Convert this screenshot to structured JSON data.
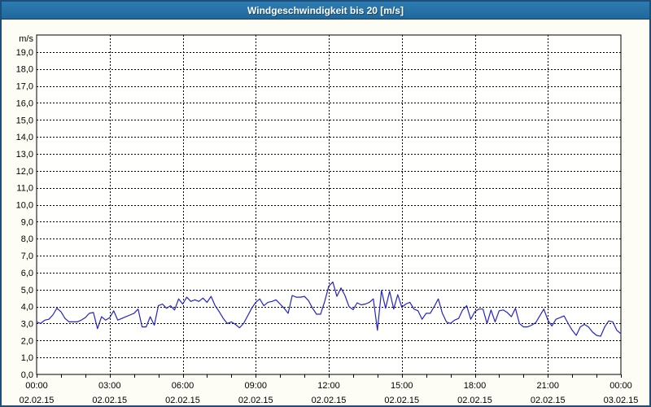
{
  "window": {
    "title": "Windgeschwindigkeit bis 20 [m/s]"
  },
  "chart_data": {
    "type": "line",
    "title": "Windgeschwindigkeit bis 20 [m/s]",
    "grid": {
      "dashed": true,
      "color": "#000000",
      "horizontal_step": 1,
      "vertical_step_hours": 3
    },
    "colors": {
      "line": "#2323c8",
      "axis": "#000000",
      "plot_background": "#fffffd",
      "outer_background": "#fdfdf6",
      "titlebar": "#2573a7",
      "frame_border": "#1b4e79"
    },
    "y_axis": {
      "unit_label": "m/s",
      "min": 0,
      "max": 20,
      "tick_step": 1,
      "tick_labels": [
        "0,0",
        "1,0",
        "2,0",
        "3,0",
        "4,0",
        "5,0",
        "6,0",
        "7,0",
        "8,0",
        "9,0",
        "10,0",
        "11,0",
        "12,0",
        "13,0",
        "14,0",
        "15,0",
        "16,0",
        "17,0",
        "18,0",
        "19,0"
      ]
    },
    "x_axis": {
      "range_hours": [
        0,
        24
      ],
      "minor_tick_every_hours": 1,
      "ticks": [
        {
          "hour": 0,
          "time": "00:00",
          "date": "02.02.15"
        },
        {
          "hour": 3,
          "time": "03:00",
          "date": "02.02.15"
        },
        {
          "hour": 6,
          "time": "06:00",
          "date": "02.02.15"
        },
        {
          "hour": 9,
          "time": "09:00",
          "date": "02.02.15"
        },
        {
          "hour": 12,
          "time": "12:00",
          "date": "02.02.15"
        },
        {
          "hour": 15,
          "time": "15:00",
          "date": "02.02.15"
        },
        {
          "hour": 18,
          "time": "18:00",
          "date": "02.02.15"
        },
        {
          "hour": 21,
          "time": "21:00",
          "date": "02.02.15"
        },
        {
          "hour": 24,
          "time": "00:00",
          "date": "03.02.15"
        }
      ]
    },
    "series": [
      {
        "name": "Windgeschwindigkeit",
        "interval_minutes": 10,
        "start_hour": 0,
        "values": [
          3.1,
          3.0,
          3.2,
          3.25,
          3.5,
          3.9,
          3.7,
          3.3,
          3.1,
          3.1,
          3.1,
          3.2,
          3.35,
          3.6,
          3.65,
          2.7,
          3.4,
          3.2,
          3.35,
          3.75,
          3.2,
          3.3,
          3.4,
          3.5,
          3.6,
          3.85,
          2.8,
          2.8,
          3.4,
          2.9,
          4.05,
          4.15,
          3.9,
          4.05,
          3.8,
          4.45,
          4.15,
          4.55,
          4.3,
          4.4,
          4.3,
          4.5,
          4.25,
          4.6,
          4.05,
          3.7,
          3.3,
          3.0,
          3.1,
          2.95,
          2.75,
          3.0,
          3.45,
          3.9,
          4.25,
          4.45,
          4.05,
          4.25,
          4.3,
          4.4,
          4.15,
          3.9,
          3.6,
          4.65,
          4.55,
          4.55,
          4.6,
          4.35,
          3.9,
          3.55,
          3.55,
          4.3,
          5.2,
          5.45,
          4.6,
          5.1,
          4.65,
          4.0,
          3.82,
          4.22,
          4.1,
          4.15,
          4.25,
          4.45,
          2.6,
          4.95,
          3.9,
          4.9,
          3.85,
          4.7,
          3.95,
          4.15,
          4.25,
          3.85,
          3.75,
          3.25,
          3.6,
          3.6,
          4.0,
          4.45,
          3.6,
          3.1,
          3.0,
          3.2,
          3.3,
          3.8,
          4.05,
          3.25,
          3.7,
          3.85,
          3.85,
          3.0,
          3.8,
          3.1,
          3.75,
          3.8,
          3.65,
          3.4,
          3.9,
          3.0,
          2.8,
          2.8,
          2.9,
          3.05,
          3.45,
          3.85,
          3.2,
          2.85,
          3.25,
          3.35,
          3.45,
          3.0,
          2.6,
          2.3,
          2.8,
          2.95,
          2.8,
          2.5,
          2.3,
          2.25,
          2.8,
          3.15,
          3.1,
          2.6,
          2.4
        ]
      }
    ]
  }
}
